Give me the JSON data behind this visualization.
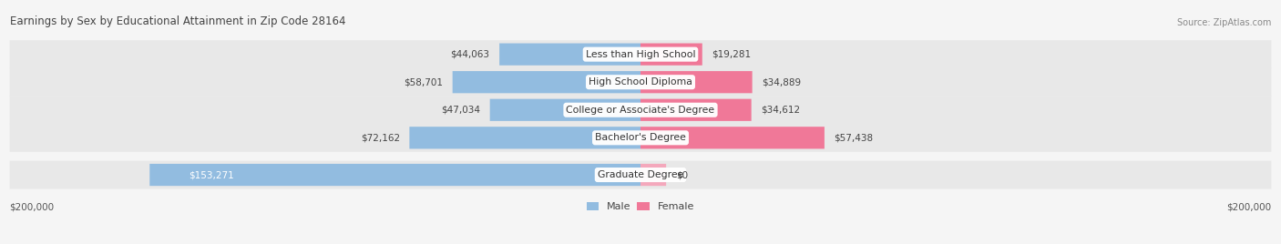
{
  "title": "Earnings by Sex by Educational Attainment in Zip Code 28164",
  "source": "Source: ZipAtlas.com",
  "categories": [
    "Less than High School",
    "High School Diploma",
    "College or Associate's Degree",
    "Bachelor's Degree",
    "Graduate Degree"
  ],
  "male_values": [
    44063,
    58701,
    47034,
    72162,
    153271
  ],
  "female_values": [
    19281,
    34889,
    34612,
    57438,
    0
  ],
  "male_color": "#92bce0",
  "female_color": "#f07898",
  "female_grad_color": "#f4a8bc",
  "max_value": 200000,
  "bg_color": "#f5f5f5",
  "row_bg_color": "#e8e8e8",
  "legend_male_color": "#92bce0",
  "legend_female_color": "#f07898"
}
